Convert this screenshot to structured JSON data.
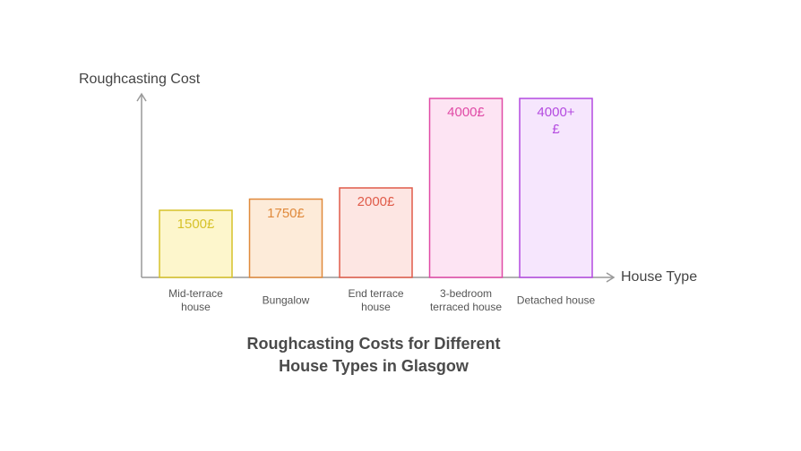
{
  "chart_data": {
    "type": "bar",
    "title": "Roughcasting Costs for Different House Types in Glasgow",
    "y_label": "Roughcasting Cost",
    "x_label": "House Type",
    "categories": [
      "Mid-terrace house",
      "Bungalow",
      "End terrace house",
      "3-bedroom terraced house",
      "Detached house"
    ],
    "values": [
      1500,
      1750,
      2000,
      4000,
      4000
    ],
    "value_labels": [
      "1500£",
      "1750£",
      "2000£",
      "4000£",
      "4000+ £"
    ],
    "colors": [
      "#d6c22a",
      "#e08a3c",
      "#e05c4a",
      "#e04aa6",
      "#b44ae0"
    ],
    "fill_colors": [
      "#fdf6cc",
      "#fdebd9",
      "#fde6e3",
      "#fde4f3",
      "#f6e6fd"
    ],
    "ylim": [
      0,
      4100
    ]
  }
}
